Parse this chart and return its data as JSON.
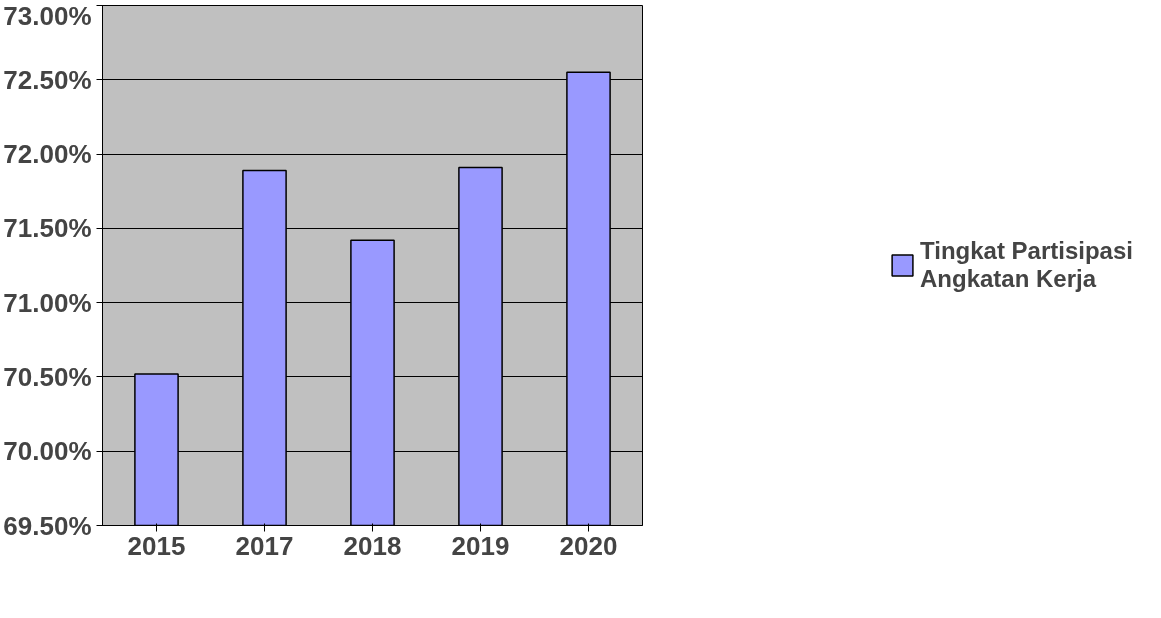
{
  "chart_data": {
    "type": "bar",
    "categories": [
      "2015",
      "2017",
      "2018",
      "2019",
      "2020"
    ],
    "series": [
      {
        "name": "Tingkat Partisipasi Angkatan Kerja",
        "color": "#9999ff",
        "values": [
          70.52,
          71.89,
          71.42,
          71.91,
          72.55
        ]
      }
    ],
    "ylim": [
      69.5,
      73
    ],
    "yticks": [
      {
        "value": 69.5,
        "label": "69.50%"
      },
      {
        "value": 70,
        "label": "70.00%"
      },
      {
        "value": 70.5,
        "label": "70.50%"
      },
      {
        "value": 71,
        "label": "71.00%"
      },
      {
        "value": 71.5,
        "label": "71.50%"
      },
      {
        "value": 72,
        "label": "72.00%"
      },
      {
        "value": 72.5,
        "label": "72.50%"
      },
      {
        "value": 73,
        "label": "73.00%"
      }
    ],
    "grid": "y",
    "legend": "right"
  }
}
